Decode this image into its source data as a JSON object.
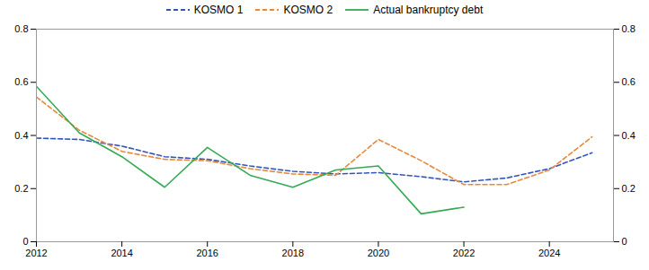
{
  "chart_data": {
    "type": "line",
    "series": [
      {
        "name": "KOSMO 1",
        "color": "#3355BB",
        "line_style": "dashed",
        "x": [
          2012,
          2013,
          2014,
          2015,
          2016,
          2017,
          2018,
          2019,
          2020,
          2021,
          2022,
          2023,
          2024,
          2025
        ],
        "values": [
          0.39,
          0.385,
          0.36,
          0.32,
          0.31,
          0.285,
          0.265,
          0.255,
          0.26,
          0.245,
          0.225,
          0.24,
          0.275,
          0.335
        ]
      },
      {
        "name": "KOSMO 2",
        "color": "#E8883A",
        "line_style": "dashed",
        "x": [
          2012,
          2013,
          2014,
          2015,
          2016,
          2017,
          2018,
          2019,
          2020,
          2021,
          2022,
          2023,
          2024,
          2025
        ],
        "values": [
          0.545,
          0.42,
          0.34,
          0.31,
          0.305,
          0.275,
          0.255,
          0.25,
          0.385,
          0.305,
          0.215,
          0.215,
          0.27,
          0.395
        ]
      },
      {
        "name": "Actual bankruptcy debt",
        "color": "#33AA55",
        "line_style": "solid",
        "x": [
          2012,
          2013,
          2014,
          2015,
          2016,
          2017,
          2018,
          2019,
          2020,
          2021,
          2022
        ],
        "values": [
          0.585,
          0.41,
          0.32,
          0.205,
          0.355,
          0.25,
          0.205,
          0.27,
          0.285,
          0.105,
          0.13
        ]
      }
    ],
    "xlim": [
      2012,
      2025.5
    ],
    "xticks": [
      2012,
      2014,
      2016,
      2018,
      2020,
      2022,
      2024
    ],
    "ylim": [
      0,
      0.8
    ],
    "yticks": [
      0,
      0.2,
      0.4,
      0.6,
      0.8
    ],
    "y2lim": [
      0,
      0.8
    ],
    "y2ticks": [
      0,
      0.2,
      0.4,
      0.6,
      0.8
    ],
    "grid": false,
    "legend": "upper center"
  }
}
